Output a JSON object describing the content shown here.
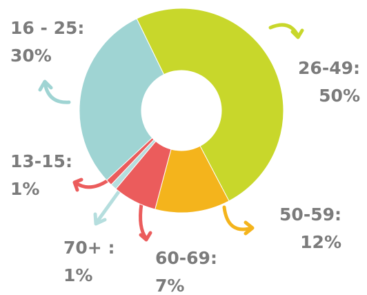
{
  "chart_data": {
    "type": "pie",
    "categories": [
      "26-49:",
      "50-59:",
      "60-69:",
      "70+ :",
      "13-15:",
      "16 - 25:"
    ],
    "values": [
      50,
      12,
      7,
      1,
      1,
      30
    ],
    "value_labels": [
      "50%",
      "12%",
      "7%",
      "1%",
      "1%",
      "30%"
    ],
    "colors": [
      "#c8d72b",
      "#f4b41c",
      "#eb5c5c",
      "#b5dede",
      "#eb5c5c",
      "#9fd4d3"
    ]
  }
}
